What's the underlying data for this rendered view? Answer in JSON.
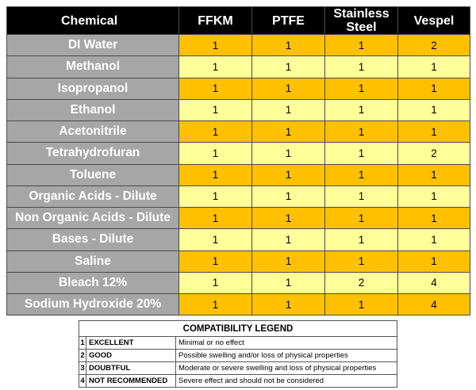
{
  "table": {
    "headers": [
      "Chemical",
      "FFKM",
      "PTFE",
      "Stainless Steel",
      "Vespel"
    ],
    "rows": [
      {
        "chemical": "DI Water",
        "values": [
          "1",
          "1",
          "1",
          "2"
        ]
      },
      {
        "chemical": "Methanol",
        "values": [
          "1",
          "1",
          "1",
          "1"
        ]
      },
      {
        "chemical": "Isopropanol",
        "values": [
          "1",
          "1",
          "1",
          "1"
        ]
      },
      {
        "chemical": "Ethanol",
        "values": [
          "1",
          "1",
          "1",
          "1"
        ]
      },
      {
        "chemical": "Acetonitrile",
        "values": [
          "1",
          "1",
          "1",
          "1"
        ]
      },
      {
        "chemical": "Tetrahydrofuran",
        "values": [
          "1",
          "1",
          "1",
          "2"
        ]
      },
      {
        "chemical": "Toluene",
        "values": [
          "1",
          "1",
          "1",
          "1"
        ]
      },
      {
        "chemical": "Organic Acids - Dilute",
        "values": [
          "1",
          "1",
          "1",
          "1"
        ]
      },
      {
        "chemical": "Non Organic Acids - Dilute",
        "values": [
          "1",
          "1",
          "1",
          "1"
        ]
      },
      {
        "chemical": "Bases - Dilute",
        "values": [
          "1",
          "1",
          "1",
          "1"
        ]
      },
      {
        "chemical": "Saline",
        "values": [
          "1",
          "1",
          "1",
          "1"
        ]
      },
      {
        "chemical": "Bleach 12%",
        "values": [
          "1",
          "1",
          "2",
          "4"
        ]
      },
      {
        "chemical": "Sodium Hydroxide 20%",
        "values": [
          "1",
          "1",
          "1",
          "4"
        ]
      }
    ]
  },
  "legend": {
    "title": "COMPATIBILITY LEGEND",
    "items": [
      {
        "number": "1",
        "label": "EXCELLENT",
        "description": "Minimal or no effect"
      },
      {
        "number": "2",
        "label": "GOOD",
        "description": "Possible swelling and/or loss of physical properties"
      },
      {
        "number": "3",
        "label": "DOUBTFUL",
        "description": "Moderate or severe swelling and loss of physical properties"
      },
      {
        "number": "4",
        "label": "NOT RECOMMENDED",
        "description": "Severe effect and should not be considered"
      }
    ]
  },
  "colors": {
    "header_bg": "#000000",
    "chemical_cell_bg": "#a6a6a6",
    "row_orange": "#ffc000",
    "row_yellow": "#ffff99"
  }
}
